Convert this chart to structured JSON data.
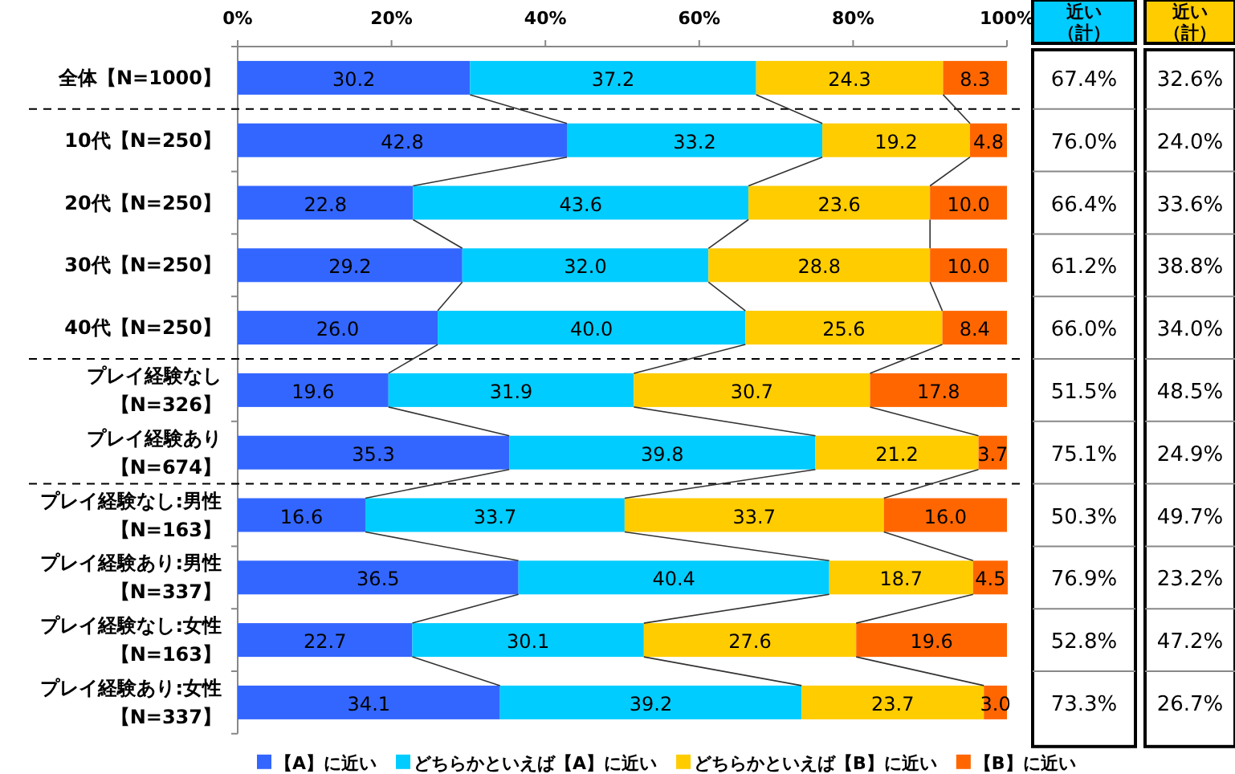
{
  "chart_data": {
    "type": "bar",
    "orientation": "horizontal",
    "stacked": true,
    "legend": "bottom",
    "grid": false,
    "categories": [
      "全体【N=1000】",
      "10代【N=250】",
      "20代【N=250】",
      "30代【N=250】",
      "40代【N=250】",
      "プレイ経験なし【N=326】",
      "プレイ経験あり【N=674】",
      "プレイ経験なし:男性【N=163】",
      "プレイ経験あり:男性【N=337】",
      "プレイ経験なし:女性【N=163】",
      "プレイ経験あり:女性【N=337】"
    ],
    "xlim": [
      0,
      100
    ],
    "xticks": [
      {
        "value": 0,
        "label": "0%"
      },
      {
        "value": 20,
        "label": "20%"
      },
      {
        "value": 40,
        "label": "40%"
      },
      {
        "value": 60,
        "label": "60%"
      },
      {
        "value": 80,
        "label": "80%"
      },
      {
        "value": 100,
        "label": "100%"
      }
    ],
    "series": [
      {
        "name": "【A】に近い",
        "color": "#3366ff",
        "values": [
          30.2,
          42.8,
          22.8,
          29.2,
          26.0,
          19.6,
          35.3,
          16.6,
          36.5,
          22.7,
          34.1
        ],
        "value_labels": [
          "30.2",
          "42.8",
          "22.8",
          "29.2",
          "26.0",
          "19.6",
          "35.3",
          "16.6",
          "36.5",
          "22.7",
          "34.1"
        ]
      },
      {
        "name": "どちらかといえば【A】に近い",
        "color": "#00ccff",
        "values": [
          37.2,
          33.2,
          43.6,
          32.0,
          40.0,
          31.9,
          39.8,
          33.7,
          40.4,
          30.1,
          39.2
        ],
        "value_labels": [
          "37.2",
          "33.2",
          "43.6",
          "32.0",
          "40.0",
          "31.9",
          "39.8",
          "33.7",
          "40.4",
          "30.1",
          "39.2"
        ]
      },
      {
        "name": "どちらかといえば【B】に近い",
        "color": "#ffcc00",
        "values": [
          24.3,
          19.2,
          23.6,
          28.8,
          25.6,
          30.7,
          21.2,
          33.7,
          18.7,
          27.6,
          23.7
        ],
        "value_labels": [
          "24.3",
          "19.2",
          "23.6",
          "28.8",
          "25.6",
          "30.7",
          "21.2",
          "33.7",
          "18.7",
          "27.6",
          "23.7"
        ]
      },
      {
        "name": "【B】に近い",
        "color": "#ff6600",
        "values": [
          8.3,
          4.8,
          10.0,
          10.0,
          8.4,
          17.8,
          3.7,
          16.0,
          4.5,
          19.6,
          3.0
        ],
        "value_labels": [
          "8.3",
          "4.8",
          "10.0",
          "10.0",
          "8.4",
          "17.8",
          "3.7",
          "16.0",
          "4.5",
          "19.6",
          "3.0"
        ]
      }
    ],
    "annotations": [
      "近い（計）",
      "近い（計）",
      "67.4%",
      "32.6%",
      "76.0%",
      "24.0%",
      "66.4%",
      "33.6%",
      "61.2%",
      "38.8%",
      "66.0%",
      "34.0%",
      "51.5%",
      "48.5%",
      "75.1%",
      "24.9%",
      "50.3%",
      "49.7%",
      "76.9%",
      "23.2%",
      "52.8%",
      "47.2%",
      "73.3%",
      "26.7%"
    ]
  }
}
